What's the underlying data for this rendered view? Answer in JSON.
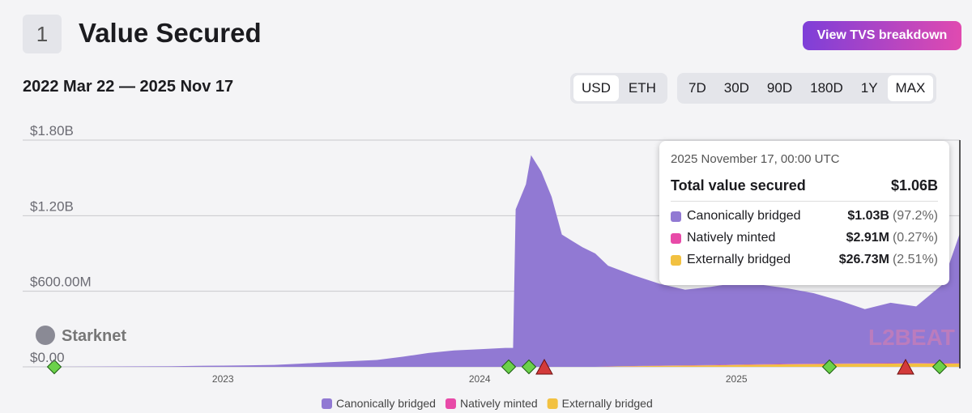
{
  "header": {
    "index": "1",
    "title": "Value Secured",
    "button": "View TVS breakdown",
    "range": "2022 Mar 22 — 2025 Nov 17"
  },
  "controls": {
    "units": [
      "USD",
      "ETH"
    ],
    "periods": [
      "7D",
      "30D",
      "90D",
      "180D",
      "1Y",
      "MAX"
    ]
  },
  "tooltip": {
    "date": "2025 November 17, 00:00 UTC",
    "total_label": "Total value secured",
    "total": "$1.06B",
    "rows": [
      {
        "value": "$1.03B",
        "share": "(97.2%)"
      },
      {
        "value": "$2.91M",
        "share": "(0.27%)"
      },
      {
        "value": "$26.73M",
        "share": "(2.51%)"
      }
    ]
  },
  "watermarks": {
    "project": "Starknet",
    "brand": "L2BEAT"
  },
  "chart_data": {
    "type": "area",
    "x": [
      2022.22,
      2022.4,
      2022.6,
      2022.8,
      2022.9,
      2023.0,
      2023.1,
      2023.2,
      2023.3,
      2023.4,
      2023.5,
      2023.6,
      2023.7,
      2023.8,
      2023.9,
      2024.0,
      2024.1,
      2024.13,
      2024.14,
      2024.18,
      2024.2,
      2024.24,
      2024.28,
      2024.32,
      2024.36,
      2024.4,
      2024.45,
      2024.5,
      2024.6,
      2024.7,
      2024.8,
      2024.9,
      2025.0,
      2025.1,
      2025.2,
      2025.3,
      2025.4,
      2025.5,
      2025.6,
      2025.7,
      2025.8,
      2025.87
    ],
    "series": [
      {
        "name": "Canonically bridged",
        "color": "#9179d3",
        "values": [
          0,
          1000000,
          3000000,
          5000000,
          8000000,
          10000000,
          12000000,
          15000000,
          25000000,
          35000000,
          45000000,
          55000000,
          80000000,
          110000000,
          130000000,
          140000000,
          150000000,
          150000000,
          1250000000,
          1450000000,
          1680000000,
          1550000000,
          1350000000,
          1050000000,
          1000000000,
          950000000,
          900000000,
          800000000,
          720000000,
          650000000,
          600000000,
          620000000,
          650000000,
          630000000,
          600000000,
          560000000,
          500000000,
          430000000,
          480000000,
          450000000,
          620000000,
          1030000000
        ]
      },
      {
        "name": "Natively minted",
        "color": "#e84aa8",
        "values": [
          0,
          0,
          0,
          0,
          0,
          0,
          0,
          0,
          0,
          0,
          0,
          0,
          0,
          0,
          0,
          0,
          0,
          0,
          0,
          0,
          0,
          0,
          0,
          0,
          0,
          0,
          0,
          1000000,
          1500000,
          2000000,
          2000000,
          2500000,
          2500000,
          3000000,
          3000000,
          3000000,
          2900000,
          2900000,
          2900000,
          2900000,
          2910000,
          2910000
        ]
      },
      {
        "name": "Externally bridged",
        "color": "#f2c141",
        "values": [
          0,
          0,
          0,
          0,
          0,
          0,
          0,
          0,
          0,
          0,
          0,
          0,
          0,
          0,
          0,
          0,
          0,
          0,
          0,
          0,
          0,
          0,
          0,
          0,
          0,
          0,
          0,
          2000000,
          5000000,
          8000000,
          10000000,
          12000000,
          15000000,
          18000000,
          20000000,
          22000000,
          24000000,
          25000000,
          26000000,
          27000000,
          26000000,
          26730000
        ]
      }
    ],
    "xlim": [
      2022.22,
      2025.87
    ],
    "xticks": [
      2023,
      2024,
      2025
    ],
    "ylim": [
      0,
      1800000000
    ],
    "yticks": [
      {
        "value": 0,
        "label": "$0.00"
      },
      {
        "value": 600000000,
        "label": "$600.00M"
      },
      {
        "value": 1200000000,
        "label": "$1.20B"
      },
      {
        "value": 1800000000,
        "label": "$1.80B"
      }
    ],
    "grid": true
  }
}
